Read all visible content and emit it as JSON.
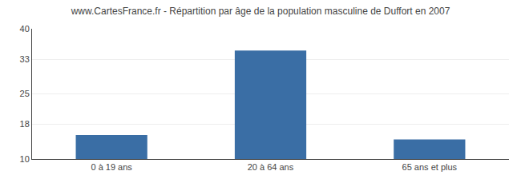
{
  "chart_data": {
    "type": "bar",
    "title": "www.CartesFrance.fr - Répartition par âge de la population masculine de Duffort en 2007",
    "categories": [
      "0 à 19 ans",
      "20 à 64 ans",
      "65 ans et plus"
    ],
    "values": [
      15.5,
      35.0,
      14.5
    ],
    "color": "#3a6ea5",
    "ylim": [
      10,
      40
    ],
    "yticks": [
      10,
      18,
      25,
      33,
      40
    ],
    "grid": true
  }
}
